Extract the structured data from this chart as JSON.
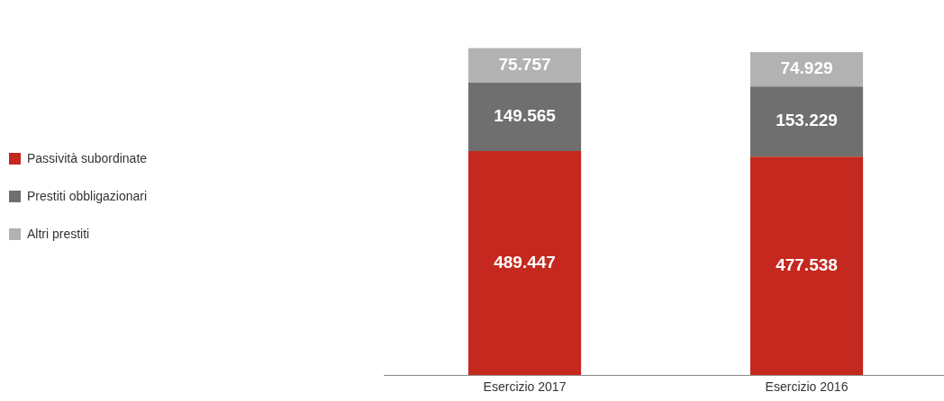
{
  "chart_data": {
    "type": "bar",
    "stacked": true,
    "categories": [
      "Esercizio 2017",
      "Esercizio 2016"
    ],
    "series": [
      {
        "name": "Passività subordinate",
        "color": "#c4281e",
        "values": [
          489.447,
          477.538
        ]
      },
      {
        "name": "Prestiti obbligazionari",
        "color": "#6f6f6f",
        "values": [
          149.565,
          153.229
        ]
      },
      {
        "name": "Altri prestiti",
        "color": "#b2b2b2",
        "values": [
          75.757,
          74.929
        ]
      }
    ],
    "data_labels": true,
    "legend": "left",
    "grid": false
  }
}
